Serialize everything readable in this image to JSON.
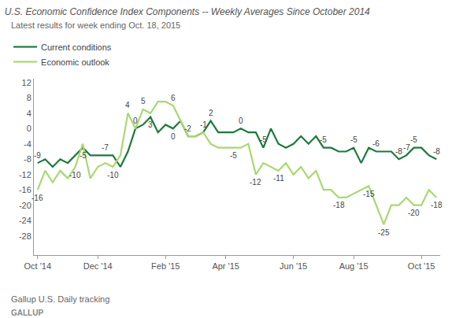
{
  "chart_data": {
    "type": "line",
    "title": "U.S. Economic Confidence Index Components -- Weekly Averages Since October 2014",
    "subtitle": "Latest results for week ending Oct. 18, 2015",
    "source": "Gallup U.S. Daily tracking",
    "logo": "GALLUP",
    "categories": [
      "Oct '14",
      null,
      null,
      null,
      null,
      null,
      null,
      null,
      "Dec '14",
      null,
      null,
      null,
      null,
      null,
      null,
      null,
      null,
      "Feb '15",
      null,
      null,
      null,
      null,
      null,
      null,
      null,
      "Apr '15",
      null,
      null,
      null,
      null,
      null,
      null,
      null,
      null,
      "Jun '15",
      null,
      null,
      null,
      null,
      null,
      null,
      null,
      "Aug '15",
      null,
      null,
      null,
      null,
      null,
      null,
      null,
      null,
      "Oct '15",
      null,
      null
    ],
    "series": [
      {
        "name": "Current conditions",
        "color": "#1d7a3c",
        "values": [
          -9,
          -8,
          -10,
          -8,
          -9,
          -7,
          -5,
          -7,
          -7,
          -7,
          -7,
          -10,
          -6,
          0,
          1,
          3,
          -1,
          1,
          0,
          2,
          -2,
          -2,
          -1,
          2,
          -1,
          -1,
          -1,
          0,
          -1,
          -1,
          -5,
          0,
          -4,
          -5,
          -4,
          -2,
          -4,
          -2,
          -5,
          -5,
          -6,
          -6,
          -5,
          -9,
          -5,
          -6,
          -6,
          -6,
          -8,
          -7,
          -5,
          -5,
          -7,
          -8
        ],
        "annotations": [
          {
            "x": 0,
            "y": -9,
            "text": "-9"
          },
          {
            "x": 6,
            "y": -5,
            "text": "-5"
          },
          {
            "x": 9,
            "y": -7,
            "text": "-7"
          },
          {
            "x": 13,
            "y": 0,
            "text": "0"
          },
          {
            "x": 15,
            "y": 3,
            "text": "3"
          },
          {
            "x": 18,
            "y": 0,
            "text": "0"
          },
          {
            "x": 23,
            "y": 2,
            "text": "2"
          },
          {
            "x": 27,
            "y": 0,
            "text": "0"
          },
          {
            "x": 30,
            "y": -5,
            "text": "-5"
          },
          {
            "x": 38,
            "y": -5,
            "text": "-5"
          },
          {
            "x": 42,
            "y": -5,
            "text": "-5"
          },
          {
            "x": 45,
            "y": -6,
            "text": "-6"
          },
          {
            "x": 48,
            "y": -8,
            "text": "-8"
          },
          {
            "x": 49,
            "y": -7,
            "text": "-7"
          },
          {
            "x": 50,
            "y": -5,
            "text": "-5"
          },
          {
            "x": 53,
            "y": -8,
            "text": "-8"
          }
        ]
      },
      {
        "name": "Economic outlook",
        "color": "#a9d870",
        "values": [
          -16,
          -11,
          -14,
          -11,
          -13,
          -10,
          -4,
          -13,
          -10,
          -9,
          -10,
          -7,
          4,
          0,
          5,
          4,
          7,
          7,
          6,
          2,
          -2,
          -2,
          -1,
          -4,
          -5,
          -5,
          -5,
          -5,
          -4,
          -12,
          -9,
          -10,
          -11,
          -9,
          -12,
          -10,
          -13,
          -11,
          -16,
          -16,
          -18,
          -18,
          -17,
          -16,
          -15,
          -20,
          -25,
          -20,
          -20,
          -18,
          -20,
          -20,
          -16,
          -18
        ],
        "annotations": [
          {
            "x": 0,
            "y": -16,
            "text": "-16"
          },
          {
            "x": 5,
            "y": -10,
            "text": "-10"
          },
          {
            "x": 10,
            "y": -10,
            "text": "-10"
          },
          {
            "x": 12,
            "y": 4,
            "text": "4"
          },
          {
            "x": 14,
            "y": 5,
            "text": "5"
          },
          {
            "x": 18,
            "y": 6,
            "text": "6"
          },
          {
            "x": 20,
            "y": -2,
            "text": "-2"
          },
          {
            "x": 22,
            "y": -1,
            "text": "-1"
          },
          {
            "x": 26,
            "y": -5,
            "text": "-5"
          },
          {
            "x": 29,
            "y": -12,
            "text": "-12"
          },
          {
            "x": 32,
            "y": -11,
            "text": "-11"
          },
          {
            "x": 40,
            "y": -18,
            "text": "-18"
          },
          {
            "x": 44,
            "y": -15,
            "text": "-15"
          },
          {
            "x": 46,
            "y": -25,
            "text": "-25"
          },
          {
            "x": 50,
            "y": -20,
            "text": "-20"
          },
          {
            "x": 53,
            "y": -18,
            "text": "-18"
          }
        ]
      }
    ],
    "ylim": [
      -33,
      13
    ],
    "yticks": [
      -28,
      -24,
      -20,
      -16,
      -12,
      -8,
      -4,
      0,
      4,
      8,
      12
    ],
    "grid": false,
    "legend": "top-left"
  }
}
